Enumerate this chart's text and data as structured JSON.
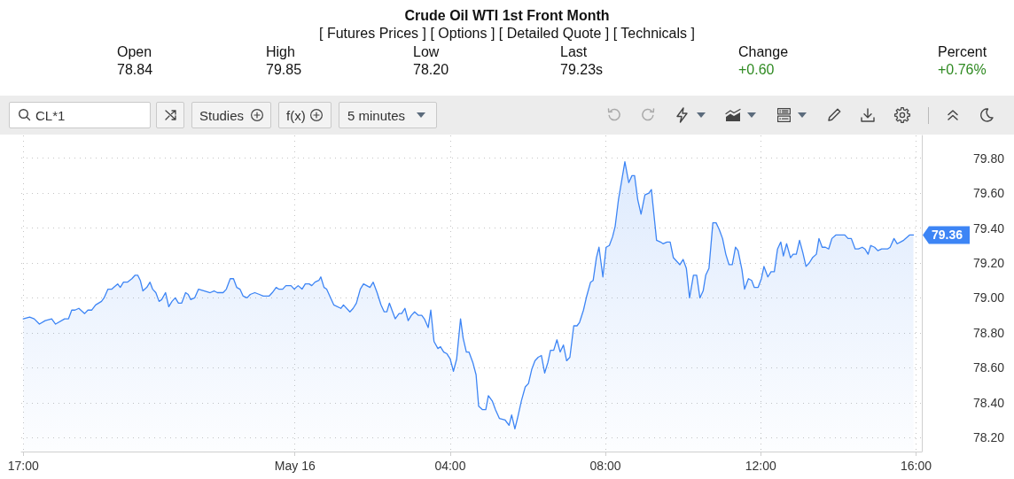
{
  "chart_data": {
    "type": "area",
    "title": "Crude Oil WTI 1st Front Month",
    "subtitle": "[ Futures Prices ] [ Options ] [ Detailed Quote ] [ Technicals ]",
    "annotations": [
      "Open",
      "78.84",
      "High",
      "79.85",
      "Low",
      "78.20",
      "Last",
      "79.23s",
      "Change",
      "+0.60",
      "Percent",
      "+0.76%",
      "CL*1",
      "Studies",
      "f(x)",
      "5 minutes",
      "79.36"
    ],
    "x": [
      "--05-15T17:00",
      "--05-15T17:10",
      "--05-15T17:17",
      "--05-15T17:25",
      "--05-15T17:34",
      "--05-15T17:44",
      "--05-15T17:50",
      "--05-15T18:04",
      "--05-15T18:10",
      "--05-15T18:15",
      "--05-15T18:20",
      "--05-15T18:26",
      "--05-15T18:35",
      "--05-15T18:40",
      "--05-15T18:46",
      "--05-15T18:52",
      "--05-15T19:01",
      "--05-15T19:05",
      "--05-15T19:11",
      "--05-15T19:17",
      "--05-15T19:20",
      "--05-15T19:26",
      "--05-15T19:30",
      "--05-15T19:35",
      "--05-15T19:41",
      "--05-15T19:48",
      "--05-15T19:53",
      "--05-15T19:57",
      "--05-15T20:01",
      "--05-15T20:05",
      "--05-15T20:11",
      "--05-15T20:16",
      "--05-15T20:20",
      "--05-15T20:25",
      "--05-15T20:30",
      "--05-15T20:34",
      "--05-15T20:40",
      "--05-15T20:45",
      "--05-15T20:50",
      "--05-15T20:55",
      "--05-15T21:00",
      "--05-15T21:05",
      "--05-15T21:11",
      "--05-15T21:15",
      "--05-15T21:19",
      "--05-15T21:25",
      "--05-15T21:31",
      "--05-15T21:40",
      "--05-15T21:49",
      "--05-15T21:55",
      "--05-15T22:00",
      "--05-15T22:09",
      "--05-15T22:14",
      "--05-15T22:20",
      "--05-15T22:25",
      "--05-15T22:30",
      "--05-15T22:35",
      "--05-15T22:40",
      "--05-15T22:46",
      "--05-15T22:51",
      "--05-15T22:58",
      "--05-15T23:05",
      "--05-15T23:11",
      "--05-15T23:20",
      "--05-15T23:25",
      "--05-15T23:31",
      "--05-15T23:35",
      "--05-15T23:41",
      "--05-15T23:46",
      "--05-15T23:54",
      "--05-15T23:59",
      "--05-16T00:05",
      "--05-16T00:11",
      "--05-16T00:16",
      "--05-16T00:22",
      "--05-16T00:26",
      "--05-16T00:31",
      "--05-16T00:37",
      "--05-16T00:40",
      "--05-16T00:45",
      "--05-16T00:49",
      "--05-16T01:00",
      "--05-16T01:11",
      "--05-16T01:15",
      "--05-16T01:25",
      "--05-16T01:30",
      "--05-16T01:35",
      "--05-16T01:41",
      "--05-16T01:46",
      "--05-16T01:56",
      "--05-16T02:01",
      "--05-16T02:07",
      "--05-16T02:13",
      "--05-16T02:18",
      "--05-16T02:22",
      "--05-16T02:26",
      "--05-16T02:30",
      "--05-16T02:35",
      "--05-16T02:41",
      "--05-16T02:45",
      "--05-16T02:50",
      "--05-16T02:55",
      "--05-16T03:00",
      "--05-16T03:05",
      "--05-16T03:11",
      "--05-16T03:16",
      "--05-16T03:20",
      "--05-16T03:26",
      "--05-16T03:30",
      "--05-16T03:35",
      "--05-16T03:41",
      "--05-16T03:45",
      "--05-16T03:50",
      "--05-16T03:55",
      "--05-16T04:00",
      "--05-16T04:05",
      "--05-16T04:10",
      "--05-16T04:16",
      "--05-16T04:20",
      "--05-16T04:25",
      "--05-16T04:29",
      "--05-16T04:35",
      "--05-16T04:40",
      "--05-16T04:44",
      "--05-16T04:50",
      "--05-16T04:55",
      "--05-16T04:59",
      "--05-16T05:05",
      "--05-16T05:10",
      "--05-16T05:16",
      "--05-16T05:25",
      "--05-16T05:31",
      "--05-16T05:35",
      "--05-16T05:40",
      "--05-16T05:44",
      "--05-16T05:50",
      "--05-16T05:56",
      "--05-16T06:01",
      "--05-16T06:06",
      "--05-16T06:11",
      "--05-16T06:16",
      "--05-16T06:21",
      "--05-16T06:26",
      "--05-16T06:31",
      "--05-16T06:35",
      "--05-16T06:40",
      "--05-16T06:45",
      "--05-16T06:50",
      "--05-16T06:55",
      "--05-16T07:00",
      "--05-16T07:05",
      "--05-16T07:11",
      "--05-16T07:16",
      "--05-16T07:20",
      "--05-16T07:26",
      "--05-16T07:31",
      "--05-16T07:37",
      "--05-16T07:41",
      "--05-16T07:46",
      "--05-16T07:50",
      "--05-16T07:56",
      "--05-16T08:01",
      "--05-16T08:06",
      "--05-16T08:11",
      "--05-16T08:15",
      "--05-16T08:20",
      "--05-16T08:25",
      "--05-16T08:30",
      "--05-16T08:36",
      "--05-16T08:41",
      "--05-16T08:45",
      "--05-16T08:50",
      "--05-16T08:55",
      "--05-16T09:01",
      "--05-16T09:07",
      "--05-16T09:11",
      "--05-16T09:19",
      "--05-16T09:25",
      "--05-16T09:29",
      "--05-16T09:35",
      "--05-16T09:40",
      "--05-16T09:45",
      "--05-16T09:50",
      "--05-16T09:55",
      "--05-16T10:00",
      "--05-16T10:05",
      "--05-16T10:10",
      "--05-16T10:16",
      "--05-16T10:21",
      "--05-16T10:26",
      "--05-16T10:31",
      "--05-16T10:35",
      "--05-16T10:40",
      "--05-16T10:46",
      "--05-16T10:51",
      "--05-16T10:56",
      "--05-16T11:01",
      "--05-16T11:06",
      "--05-16T11:11",
      "--05-16T11:16",
      "--05-16T11:21",
      "--05-16T11:25",
      "--05-16T11:31",
      "--05-16T11:35",
      "--05-16T11:41",
      "--05-16T11:46",
      "--05-16T11:50",
      "--05-16T11:56",
      "--05-16T12:01",
      "--05-16T12:05",
      "--05-16T12:11",
      "--05-16T12:16",
      "--05-16T12:21",
      "--05-16T12:26",
      "--05-16T12:31",
      "--05-16T12:35",
      "--05-16T12:40",
      "--05-16T12:46",
      "--05-16T12:50",
      "--05-16T12:55",
      "--05-16T13:00",
      "--05-16T13:05",
      "--05-16T13:10",
      "--05-16T13:15",
      "--05-16T13:20",
      "--05-16T13:26",
      "--05-16T13:30",
      "--05-16T13:35",
      "--05-16T13:40",
      "--05-16T13:45",
      "--05-16T13:50",
      "--05-16T13:56",
      "--05-16T14:10",
      "--05-16T14:15",
      "--05-16T14:20",
      "--05-16T14:26",
      "--05-16T14:31",
      "--05-16T14:37",
      "--05-16T14:41",
      "--05-16T14:46",
      "--05-16T14:50",
      "--05-16T14:56",
      "--05-16T15:01",
      "--05-16T15:07",
      "--05-16T15:16",
      "--05-16T15:20",
      "--05-16T15:26",
      "--05-16T15:31",
      "--05-16T15:36",
      "--05-16T15:41",
      "--05-16T15:50",
      "--05-16T15:56"
    ],
    "series": [
      {
        "color": "#3d85f5",
        "values": [
          78.88,
          78.89,
          78.88,
          78.85,
          78.87,
          78.88,
          78.85,
          78.88,
          78.88,
          78.93,
          78.93,
          78.94,
          78.91,
          78.93,
          78.93,
          78.96,
          78.98,
          79.0,
          79.05,
          79.05,
          79.06,
          79.08,
          79.06,
          79.09,
          79.09,
          79.11,
          79.13,
          79.13,
          79.1,
          79.04,
          79.06,
          79.09,
          79.05,
          79.03,
          78.98,
          78.99,
          79.03,
          78.95,
          78.98,
          79.0,
          78.97,
          78.97,
          79.03,
          79.02,
          78.99,
          79.0,
          79.05,
          79.04,
          79.03,
          79.04,
          79.03,
          79.03,
          79.05,
          79.11,
          79.11,
          79.06,
          79.05,
          79.01,
          79.0,
          79.02,
          79.03,
          79.02,
          79.01,
          79.01,
          79.03,
          79.06,
          79.05,
          79.05,
          79.07,
          79.07,
          79.05,
          79.07,
          79.05,
          79.08,
          79.08,
          79.07,
          79.09,
          79.1,
          79.12,
          79.06,
          79.05,
          78.96,
          78.94,
          78.96,
          78.92,
          78.94,
          78.97,
          79.05,
          79.08,
          79.06,
          79.09,
          79.03,
          78.96,
          78.92,
          78.92,
          78.97,
          78.93,
          78.88,
          78.91,
          78.91,
          78.94,
          78.87,
          78.9,
          78.92,
          78.9,
          78.9,
          78.88,
          78.83,
          78.93,
          78.75,
          78.71,
          78.72,
          78.69,
          78.68,
          78.65,
          78.58,
          78.65,
          78.88,
          78.77,
          78.69,
          78.69,
          78.63,
          78.56,
          78.38,
          78.36,
          78.36,
          78.44,
          78.41,
          78.36,
          78.31,
          78.3,
          78.27,
          78.33,
          78.25,
          78.31,
          78.41,
          78.49,
          78.51,
          78.59,
          78.64,
          78.66,
          78.67,
          78.57,
          78.63,
          78.7,
          78.7,
          78.76,
          78.69,
          78.73,
          78.64,
          78.66,
          78.84,
          78.84,
          78.86,
          78.93,
          79.01,
          79.09,
          79.1,
          79.23,
          79.29,
          79.12,
          79.29,
          79.3,
          79.35,
          79.41,
          79.56,
          79.67,
          79.78,
          79.66,
          79.7,
          79.7,
          79.56,
          79.48,
          79.59,
          79.6,
          79.62,
          79.33,
          79.32,
          79.31,
          79.32,
          79.32,
          79.23,
          79.21,
          79.19,
          79.22,
          79.17,
          79.0,
          79.13,
          79.13,
          79.0,
          79.04,
          79.13,
          79.17,
          79.43,
          79.43,
          79.39,
          79.34,
          79.25,
          79.19,
          79.19,
          79.29,
          79.27,
          79.16,
          79.05,
          79.11,
          79.1,
          79.06,
          79.06,
          79.11,
          79.18,
          79.12,
          79.15,
          79.15,
          79.28,
          79.32,
          79.24,
          79.31,
          79.23,
          79.25,
          79.25,
          79.33,
          79.26,
          79.18,
          79.2,
          79.23,
          79.25,
          79.34,
          79.29,
          79.29,
          79.28,
          79.34,
          79.36,
          79.36,
          79.34,
          79.34,
          79.28,
          79.28,
          79.29,
          79.28,
          79.25,
          79.3,
          79.29,
          79.27,
          79.28,
          79.28,
          79.29,
          79.34,
          79.31,
          79.32,
          79.33,
          79.36,
          79.36
        ]
      }
    ],
    "xlim": [
      "--05-15T16:57",
      "--05-16T16:09"
    ],
    "xticks": [
      {
        "value": "--05-15T17:00",
        "label": "17:00"
      },
      {
        "value": "--05-16T00:00",
        "label": "May 16"
      },
      {
        "value": "--05-16T04:00",
        "label": "04:00"
      },
      {
        "value": "--05-16T08:00",
        "label": "08:00"
      },
      {
        "value": "--05-16T12:00",
        "label": "12:00"
      },
      {
        "value": "--05-16T16:00",
        "label": "16:00"
      }
    ],
    "ylim": [
      78.12,
      79.93
    ],
    "yticks": [
      {
        "value": 78.2,
        "label": "78.20"
      },
      {
        "value": 78.4,
        "label": "78.40"
      },
      {
        "value": 78.6,
        "label": "78.60"
      },
      {
        "value": 78.8,
        "label": "78.80"
      },
      {
        "value": 79.0,
        "label": "79.00"
      },
      {
        "value": 79.2,
        "label": "79.20"
      },
      {
        "value": 79.4,
        "label": "79.40"
      },
      {
        "value": 79.6,
        "label": "79.60"
      },
      {
        "value": 79.8,
        "label": "79.80"
      }
    ],
    "grid": true,
    "marker": "none",
    "line_style": "solid"
  }
}
